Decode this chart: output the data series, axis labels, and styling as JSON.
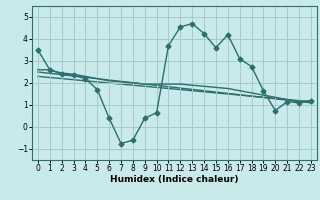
{
  "bg_color": "#c8eaea",
  "grid_color": "#a8caca",
  "line_color": "#2d6e6e",
  "marker": "D",
  "markersize": 2.5,
  "linewidth": 1.0,
  "xlabel": "Humidex (Indice chaleur)",
  "xlim": [
    -0.5,
    23.5
  ],
  "ylim": [
    -1.5,
    5.5
  ],
  "yticks": [
    -1,
    0,
    1,
    2,
    3,
    4,
    5
  ],
  "xticks": [
    0,
    1,
    2,
    3,
    4,
    5,
    6,
    7,
    8,
    9,
    10,
    11,
    12,
    13,
    14,
    15,
    16,
    17,
    18,
    19,
    20,
    21,
    22,
    23
  ],
  "line1_x": [
    0,
    1,
    2,
    3,
    4,
    5,
    6,
    7,
    8,
    9,
    10,
    11,
    12,
    13,
    14,
    15,
    16,
    17,
    18,
    19,
    20,
    21,
    22,
    23
  ],
  "line1_y": [
    3.5,
    2.6,
    2.4,
    2.35,
    2.2,
    1.7,
    0.4,
    -0.75,
    -0.6,
    0.4,
    0.65,
    3.7,
    4.55,
    4.7,
    4.25,
    3.6,
    4.2,
    3.1,
    2.75,
    1.65,
    0.75,
    1.15,
    1.1,
    1.2
  ],
  "line2_x": [
    0,
    1,
    2,
    3,
    4,
    5,
    6,
    7,
    8,
    9,
    10,
    11,
    12,
    13,
    14,
    15,
    16,
    17,
    18,
    19,
    20,
    21,
    22,
    23
  ],
  "line2_y": [
    2.6,
    2.6,
    2.45,
    2.4,
    2.3,
    2.2,
    2.1,
    2.05,
    2.0,
    1.95,
    1.95,
    1.95,
    1.95,
    1.9,
    1.85,
    1.8,
    1.75,
    1.65,
    1.55,
    1.45,
    1.35,
    1.25,
    1.15,
    1.2
  ],
  "line3_x": [
    0,
    23
  ],
  "line3_y": [
    2.5,
    1.1
  ],
  "line4_x": [
    0,
    23
  ],
  "line4_y": [
    2.3,
    1.15
  ]
}
